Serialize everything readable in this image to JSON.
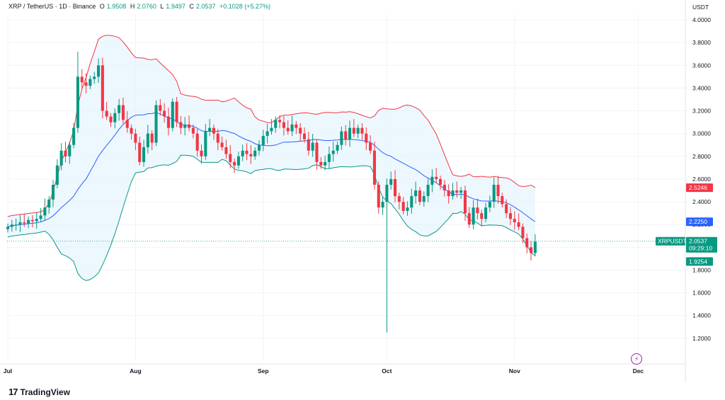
{
  "header": {
    "symbol": "XRP / TetherUS · 1D · Binance",
    "open_label": "O",
    "open": "1.9508",
    "high_label": "H",
    "high": "2.0760",
    "low_label": "L",
    "low": "1.9497",
    "close_label": "C",
    "close": "2.0537",
    "change": "+0.1028 (+5.27%)"
  },
  "axis_unit": "USDT",
  "brand": "TradingView",
  "colors": {
    "up": "#089981",
    "down": "#f23645",
    "upper_band": "#f23645",
    "basis": "#2962ff",
    "lower_band": "#089981",
    "band_fill": "#e3f2fd"
  },
  "price_tags": {
    "upper": {
      "text": "2.5246",
      "value": 2.5246,
      "color": "#f23645"
    },
    "basis": {
      "text": "2.2250",
      "value": 2.225,
      "color": "#2962ff"
    },
    "last_symbol": "XRPUSDT",
    "last": {
      "text": "2.0537",
      "value": 2.0537,
      "color": "#089981"
    },
    "countdown": "09:29:10",
    "lower": {
      "text": "1.9254",
      "value": 1.9254,
      "color": "#089981"
    }
  },
  "chart_data": {
    "type": "candlestick",
    "indicator": "Bollinger Bands",
    "ylim": [
      1.0,
      4.05
    ],
    "y_ticks": [
      "4.0000",
      "3.8000",
      "3.6000",
      "3.4000",
      "3.2000",
      "3.0000",
      "2.8000",
      "2.6000",
      "2.4000",
      "2.2000",
      "2.0000",
      "1.8000",
      "1.6000",
      "1.4000",
      "1.2000"
    ],
    "x_labels": [
      {
        "label": "Jul",
        "index": 0
      },
      {
        "label": "Aug",
        "index": 31
      },
      {
        "label": "Sep",
        "index": 62
      },
      {
        "label": "Oct",
        "index": 92
      },
      {
        "label": "Nov",
        "index": 123
      },
      {
        "label": "Dec",
        "index": 153
      }
    ],
    "closes": [
      2.18,
      2.2,
      2.2,
      2.22,
      2.21,
      2.24,
      2.23,
      2.25,
      2.28,
      2.35,
      2.42,
      2.55,
      2.72,
      2.85,
      2.8,
      2.9,
      3.05,
      3.5,
      3.45,
      3.42,
      3.48,
      3.5,
      3.6,
      3.2,
      3.15,
      3.1,
      3.18,
      3.25,
      3.12,
      3.05,
      3.0,
      2.92,
      2.75,
      2.88,
      3.0,
      2.92,
      3.25,
      3.2,
      3.15,
      3.05,
      3.28,
      3.1,
      3.05,
      3.08,
      3.05,
      3.0,
      2.85,
      2.8,
      3.02,
      3.05,
      3.0,
      2.92,
      2.88,
      2.82,
      2.75,
      2.72,
      2.8,
      2.85,
      2.82,
      2.8,
      2.85,
      2.9,
      2.98,
      3.02,
      3.05,
      3.12,
      3.1,
      3.05,
      3.02,
      3.08,
      3.05,
      3.0,
      2.95,
      2.85,
      2.92,
      2.75,
      2.72,
      2.75,
      2.82,
      2.85,
      2.9,
      3.02,
      2.95,
      3.05,
      3.0,
      3.05,
      3.0,
      2.92,
      2.85,
      2.55,
      2.35,
      2.4,
      2.55,
      2.6,
      2.45,
      2.4,
      2.32,
      2.35,
      2.45,
      2.5,
      2.4,
      2.45,
      2.55,
      2.62,
      2.6,
      2.55,
      2.5,
      2.45,
      2.5,
      2.48,
      2.5,
      2.3,
      2.2,
      2.35,
      2.3,
      2.25,
      2.35,
      2.4,
      2.55,
      2.45,
      2.38,
      2.3,
      2.25,
      2.22,
      2.18,
      2.08,
      2.0,
      1.95,
      2.05
    ],
    "indicator_values": {
      "upper_last": 2.5246,
      "basis_last": 2.225,
      "lower_last": 1.9254
    },
    "last_price": 2.0537
  }
}
